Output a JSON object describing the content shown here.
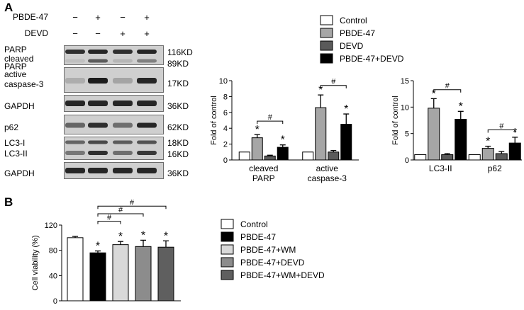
{
  "figure": {
    "panel_a_letter": "A",
    "panel_b_letter": "B"
  },
  "blot": {
    "treatments": [
      {
        "label": "PBDE-47",
        "signs": [
          "−",
          "+",
          "−",
          "+"
        ]
      },
      {
        "label": "DEVD",
        "signs": [
          "−",
          "−",
          "+",
          "+"
        ]
      }
    ],
    "rows": [
      {
        "left": [
          "PARP",
          "cleaved",
          "PARP"
        ],
        "right": [
          "116KD",
          "89KD"
        ],
        "kind": "parp"
      },
      {
        "left": [
          "active",
          "caspase-3"
        ],
        "right": [
          "17KD"
        ],
        "kind": "casp"
      },
      {
        "left": [
          "GAPDH"
        ],
        "right": [
          "36KD"
        ],
        "kind": "gapdh"
      },
      {
        "left": [
          "p62"
        ],
        "right": [
          "62KD"
        ],
        "kind": "p62"
      },
      {
        "left": [
          "LC3-I",
          "LC3-II"
        ],
        "right": [
          "18KD",
          "16KD"
        ],
        "kind": "lc3"
      },
      {
        "left": [
          "GAPDH"
        ],
        "right": [
          "36KD"
        ],
        "kind": "gapdh"
      }
    ]
  },
  "colors": {
    "control": "#ffffff",
    "pbde47_a": "#a6a6a6",
    "devd": "#5a5a5a",
    "pbde47_devd": "#000000",
    "pbde47_b": "#000000",
    "pbde47_wm": "#d9d9d9",
    "pbde47_devd_b": "#8c8c8c",
    "pbde47_wm_devd": "#5f5f5f"
  },
  "legend_a": [
    "Control",
    "PBDE-47",
    "DEVD",
    "PBDE-47+DEVD"
  ],
  "legend_b": [
    "Control",
    "PBDE-47",
    "PBDE-47+WM",
    "PBDE-47+DEVD",
    "PBDE-47+WM+DEVD"
  ],
  "chart_data": [
    {
      "type": "bar",
      "panel": "A-left",
      "ylabel": "Fold of control",
      "ylim": [
        0,
        10
      ],
      "yticks": [
        0,
        2,
        4,
        6,
        8,
        10
      ],
      "categories": [
        "cleaved PARP",
        "active caspase-3"
      ],
      "category_labels": [
        [
          "cleaved",
          "PARP"
        ],
        [
          "active",
          "caspase-3"
        ]
      ],
      "series": [
        {
          "name": "Control",
          "values": [
            1.0,
            1.0
          ],
          "errors": [
            0,
            0
          ]
        },
        {
          "name": "PBDE-47",
          "values": [
            2.8,
            6.6
          ],
          "errors": [
            0.4,
            1.6
          ]
        },
        {
          "name": "DEVD",
          "values": [
            0.5,
            1.0
          ],
          "errors": [
            0.1,
            0.2
          ]
        },
        {
          "name": "PBDE-47+DEVD",
          "values": [
            1.6,
            4.5
          ],
          "errors": [
            0.3,
            1.3
          ]
        }
      ],
      "significance": [
        {
          "text": "*",
          "group": 0,
          "series": 1
        },
        {
          "text": "*",
          "group": 0,
          "series": 3
        },
        {
          "text": "*",
          "group": 1,
          "series": 1
        },
        {
          "text": "*",
          "group": 1,
          "series": 3
        }
      ],
      "brackets": [
        {
          "text": "#",
          "group": 0,
          "from": 1,
          "to": 3,
          "y": 4.9
        },
        {
          "text": "#",
          "group": 1,
          "from": 1,
          "to": 3,
          "y": 9.4
        }
      ]
    },
    {
      "type": "bar",
      "panel": "A-right",
      "ylabel": "Fold of control",
      "ylim": [
        0,
        15
      ],
      "yticks": [
        0,
        5,
        10,
        15
      ],
      "categories": [
        "LC3-II",
        "p62"
      ],
      "category_labels": [
        [
          "LC3-II"
        ],
        [
          "p62"
        ]
      ],
      "series": [
        {
          "name": "Control",
          "values": [
            1.0,
            1.0
          ],
          "errors": [
            0,
            0
          ]
        },
        {
          "name": "PBDE-47",
          "values": [
            9.8,
            2.2
          ],
          "errors": [
            1.8,
            0.4
          ]
        },
        {
          "name": "DEVD",
          "values": [
            1.0,
            1.2
          ],
          "errors": [
            0.2,
            0.4
          ]
        },
        {
          "name": "PBDE-47+DEVD",
          "values": [
            7.7,
            3.2
          ],
          "errors": [
            1.5,
            1.1
          ]
        }
      ],
      "significance": [
        {
          "text": "*",
          "group": 0,
          "series": 1
        },
        {
          "text": "*",
          "group": 0,
          "series": 3
        },
        {
          "text": "*",
          "group": 1,
          "series": 1
        },
        {
          "text": "*",
          "group": 1,
          "series": 3
        }
      ],
      "brackets": [
        {
          "text": "#",
          "group": 0,
          "from": 1,
          "to": 3,
          "y": 13.3
        },
        {
          "text": "#",
          "group": 1,
          "from": 1,
          "to": 3,
          "y": 5.7
        }
      ]
    },
    {
      "type": "bar",
      "panel": "B",
      "ylabel": "Cell viability (%)",
      "ylim": [
        0,
        120
      ],
      "yticks": [
        0,
        40,
        80,
        120
      ],
      "categories": [
        "Control",
        "PBDE-47",
        "PBDE-47+WM",
        "PBDE-47+DEVD",
        "PBDE-47+WM+DEVD"
      ],
      "values": [
        100,
        76,
        89,
        86,
        85
      ],
      "errors": [
        2,
        3,
        5,
        10,
        10
      ],
      "significance": [
        "",
        "*",
        "*",
        "*",
        "*"
      ],
      "brackets": [
        {
          "text": "#",
          "from": 1,
          "to": 2,
          "y": 126
        },
        {
          "text": "#",
          "from": 1,
          "to": 3,
          "y": 138
        },
        {
          "text": "#",
          "from": 1,
          "to": 4,
          "y": 150
        }
      ]
    }
  ]
}
